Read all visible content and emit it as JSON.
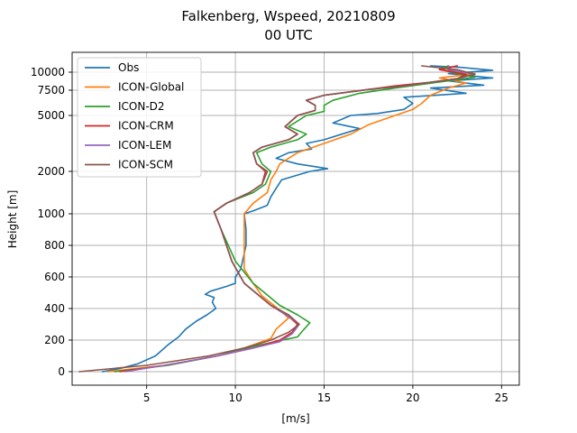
{
  "chart_data": {
    "type": "line",
    "title": "Falkenberg, Wspeed, 20210809",
    "subtitle": "00 UTC",
    "xlabel": "[m/s]",
    "ylabel": "Height [m]",
    "xlim": [
      0.8,
      26.0
    ],
    "y_scale": "piecewise",
    "x_ticks": [
      5,
      10,
      15,
      20,
      25
    ],
    "y_ticks": [
      0,
      200,
      400,
      600,
      800,
      1000,
      2000,
      5000,
      7500,
      10000
    ],
    "y_tick_labels": [
      "0",
      "200",
      "400",
      "600",
      "800",
      "1000",
      "2000",
      "5000",
      "7500",
      "10000"
    ],
    "grid": true,
    "legend_position": "top-left",
    "series": [
      {
        "name": "Obs",
        "color": "#1f77b4",
        "points": [
          [
            2.5,
            0
          ],
          [
            3.5,
            20
          ],
          [
            4.5,
            50
          ],
          [
            5.5,
            100
          ],
          [
            6.2,
            170
          ],
          [
            6.8,
            220
          ],
          [
            7.2,
            270
          ],
          [
            7.8,
            320
          ],
          [
            8.4,
            360
          ],
          [
            8.9,
            400
          ],
          [
            8.7,
            440
          ],
          [
            8.8,
            470
          ],
          [
            8.3,
            490
          ],
          [
            8.6,
            510
          ],
          [
            9.5,
            540
          ],
          [
            10.0,
            560
          ],
          [
            10.0,
            600
          ],
          [
            10.3,
            650
          ],
          [
            10.4,
            700
          ],
          [
            10.6,
            800
          ],
          [
            10.6,
            900
          ],
          [
            10.5,
            1000
          ],
          [
            11.0,
            1070
          ],
          [
            11.8,
            1200
          ],
          [
            12.0,
            1400
          ],
          [
            12.3,
            1600
          ],
          [
            12.6,
            1800
          ],
          [
            14.2,
            2000
          ],
          [
            15.2,
            2150
          ],
          [
            13.5,
            2400
          ],
          [
            12.3,
            2700
          ],
          [
            13.0,
            3000
          ],
          [
            14.3,
            3200
          ],
          [
            14.0,
            3500
          ],
          [
            15.0,
            3700
          ],
          [
            16.0,
            4000
          ],
          [
            17.0,
            4300
          ],
          [
            15.5,
            4600
          ],
          [
            16.5,
            5000
          ],
          [
            18.0,
            5200
          ],
          [
            19.5,
            5600
          ],
          [
            20.0,
            6200
          ],
          [
            19.5,
            6800
          ],
          [
            23.0,
            7200
          ],
          [
            21.0,
            7800
          ],
          [
            24.0,
            8200
          ],
          [
            22.0,
            8800
          ],
          [
            24.5,
            9200
          ],
          [
            22.0,
            9800
          ],
          [
            24.5,
            10300
          ],
          [
            22.5,
            10800
          ],
          [
            21.0,
            11000
          ]
        ]
      },
      {
        "name": "ICON-Global",
        "color": "#ff7f0e",
        "points": [
          [
            2.8,
            0
          ],
          [
            6.0,
            40
          ],
          [
            9.0,
            100
          ],
          [
            10.5,
            150
          ],
          [
            12.0,
            210
          ],
          [
            12.3,
            270
          ],
          [
            13.0,
            340
          ],
          [
            12.5,
            390
          ],
          [
            11.5,
            480
          ],
          [
            11.0,
            560
          ],
          [
            10.5,
            650
          ],
          [
            10.5,
            800
          ],
          [
            10.5,
            1000
          ],
          [
            11.0,
            1250
          ],
          [
            11.8,
            1500
          ],
          [
            12.0,
            1800
          ],
          [
            12.3,
            2000
          ],
          [
            12.5,
            2400
          ],
          [
            13.5,
            3000
          ],
          [
            15.0,
            3500
          ],
          [
            16.5,
            4000
          ],
          [
            17.5,
            4500
          ],
          [
            19.0,
            5000
          ],
          [
            20.0,
            5600
          ],
          [
            20.5,
            6200
          ],
          [
            21.0,
            7000
          ],
          [
            22.0,
            7800
          ],
          [
            23.0,
            8500
          ],
          [
            21.5,
            9200
          ],
          [
            23.5,
            9800
          ],
          [
            21.5,
            10400
          ],
          [
            22.5,
            11000
          ]
        ]
      },
      {
        "name": "ICON-D2",
        "color": "#2ca02c",
        "points": [
          [
            3.2,
            0
          ],
          [
            6.2,
            40
          ],
          [
            9.0,
            100
          ],
          [
            11.0,
            160
          ],
          [
            13.5,
            220
          ],
          [
            13.8,
            260
          ],
          [
            14.2,
            310
          ],
          [
            13.5,
            360
          ],
          [
            12.5,
            420
          ],
          [
            11.0,
            560
          ],
          [
            10.0,
            700
          ],
          [
            9.2,
            900
          ],
          [
            8.8,
            1050
          ],
          [
            9.5,
            1250
          ],
          [
            11.0,
            1500
          ],
          [
            11.7,
            1700
          ],
          [
            12.0,
            2000
          ],
          [
            11.5,
            2400
          ],
          [
            11.2,
            3000
          ],
          [
            12.0,
            3300
          ],
          [
            13.5,
            3700
          ],
          [
            14.0,
            4000
          ],
          [
            13.0,
            4400
          ],
          [
            14.0,
            5000
          ],
          [
            15.0,
            5400
          ],
          [
            15.0,
            6000
          ],
          [
            15.5,
            6500
          ],
          [
            17.0,
            7200
          ],
          [
            19.0,
            7800
          ],
          [
            20.5,
            8300
          ],
          [
            22.0,
            8800
          ],
          [
            23.5,
            9300
          ],
          [
            22.5,
            9800
          ],
          [
            21.5,
            10500
          ],
          [
            22.0,
            11000
          ]
        ]
      },
      {
        "name": "ICON-CRM",
        "color": "#d62728",
        "points": [
          [
            3.5,
            0
          ],
          [
            6.0,
            40
          ],
          [
            9.0,
            100
          ],
          [
            11.0,
            150
          ],
          [
            12.5,
            200
          ],
          [
            13.2,
            250
          ],
          [
            13.5,
            300
          ],
          [
            13.0,
            350
          ],
          [
            12.0,
            420
          ],
          [
            10.5,
            560
          ],
          [
            9.8,
            700
          ],
          [
            9.2,
            900
          ],
          [
            8.8,
            1050
          ],
          [
            9.5,
            1250
          ],
          [
            10.8,
            1500
          ],
          [
            11.5,
            1700
          ],
          [
            11.7,
            2000
          ],
          [
            11.2,
            2400
          ],
          [
            11.0,
            3000
          ],
          [
            11.5,
            3300
          ],
          [
            13.0,
            3700
          ],
          [
            13.5,
            4000
          ],
          [
            12.8,
            4400
          ],
          [
            13.5,
            5000
          ],
          [
            14.5,
            5500
          ],
          [
            14.5,
            6000
          ],
          [
            14.0,
            6500
          ],
          [
            15.0,
            7000
          ],
          [
            17.5,
            7600
          ],
          [
            19.0,
            8100
          ],
          [
            21.0,
            8600
          ],
          [
            22.5,
            9100
          ],
          [
            23.0,
            9700
          ],
          [
            21.5,
            10400
          ],
          [
            22.5,
            11000
          ]
        ]
      },
      {
        "name": "ICON-LEM",
        "color": "#9467bd",
        "points": [
          [
            3.8,
            0
          ],
          [
            6.0,
            40
          ],
          [
            9.0,
            100
          ],
          [
            11.0,
            150
          ],
          [
            12.5,
            190
          ],
          [
            13.2,
            240
          ],
          [
            13.6,
            300
          ],
          [
            13.0,
            350
          ],
          [
            12.0,
            420
          ],
          [
            10.5,
            560
          ],
          [
            9.8,
            700
          ],
          [
            9.2,
            900
          ],
          [
            8.8,
            1050
          ],
          [
            9.5,
            1250
          ],
          [
            10.8,
            1500
          ],
          [
            11.5,
            1700
          ],
          [
            11.8,
            2000
          ],
          [
            11.2,
            2400
          ],
          [
            11.0,
            3000
          ],
          [
            11.5,
            3300
          ],
          [
            13.0,
            3700
          ],
          [
            13.5,
            4000
          ],
          [
            12.8,
            4400
          ],
          [
            13.5,
            5000
          ],
          [
            14.5,
            5500
          ],
          [
            14.5,
            6000
          ],
          [
            14.0,
            6500
          ],
          [
            15.0,
            7000
          ],
          [
            17.5,
            7600
          ],
          [
            19.5,
            8100
          ],
          [
            21.0,
            8600
          ],
          [
            22.5,
            9100
          ],
          [
            23.5,
            9700
          ],
          [
            22.0,
            10400
          ],
          [
            22.0,
            11000
          ]
        ]
      },
      {
        "name": "ICON-SCM",
        "color": "#8c564b",
        "points": [
          [
            1.2,
            0
          ],
          [
            5.0,
            40
          ],
          [
            8.5,
            100
          ],
          [
            10.5,
            150
          ],
          [
            12.0,
            200
          ],
          [
            13.0,
            250
          ],
          [
            13.6,
            300
          ],
          [
            13.0,
            360
          ],
          [
            12.0,
            420
          ],
          [
            10.5,
            560
          ],
          [
            9.8,
            700
          ],
          [
            9.2,
            900
          ],
          [
            8.8,
            1050
          ],
          [
            9.5,
            1250
          ],
          [
            10.8,
            1500
          ],
          [
            11.5,
            1700
          ],
          [
            11.8,
            2000
          ],
          [
            11.2,
            2400
          ],
          [
            11.0,
            3000
          ],
          [
            11.5,
            3300
          ],
          [
            13.0,
            3700
          ],
          [
            13.5,
            4000
          ],
          [
            12.8,
            4400
          ],
          [
            13.5,
            5000
          ],
          [
            14.5,
            5500
          ],
          [
            14.5,
            6000
          ],
          [
            14.0,
            6500
          ],
          [
            15.0,
            7000
          ],
          [
            17.5,
            7600
          ],
          [
            19.5,
            8100
          ],
          [
            21.0,
            8600
          ],
          [
            22.5,
            9100
          ],
          [
            23.5,
            9700
          ],
          [
            22.5,
            10400
          ],
          [
            20.5,
            11000
          ]
        ]
      }
    ]
  }
}
